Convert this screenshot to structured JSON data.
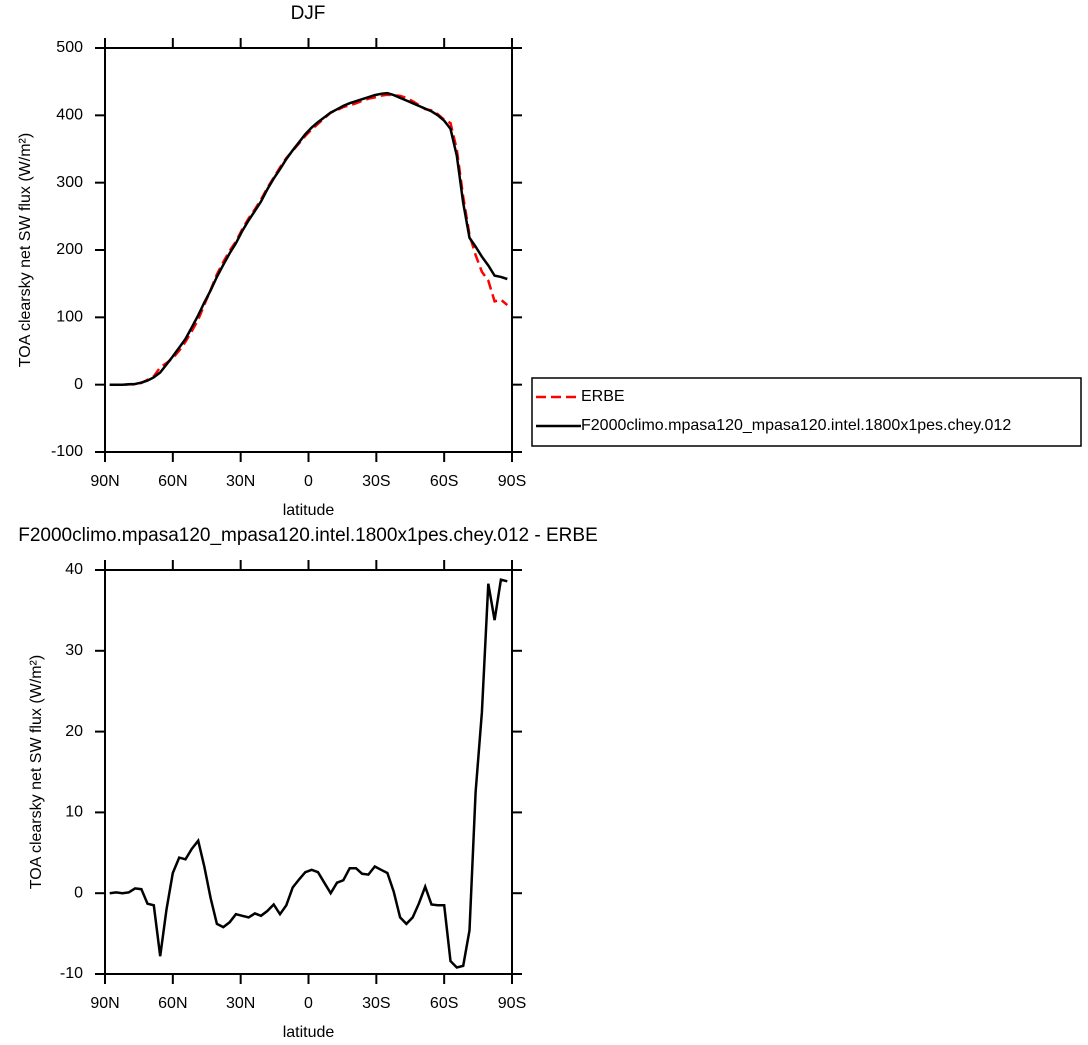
{
  "chart_data": [
    {
      "type": "line",
      "title": "DJF",
      "xlabel": "latitude",
      "ylabel": "TOA clearsky net SW flux (W/m²)",
      "x": [
        87.9,
        85.1,
        82.3,
        79.5,
        76.7,
        73.9,
        71.2,
        68.4,
        65.6,
        62.8,
        60.0,
        57.2,
        54.4,
        51.6,
        48.8,
        46.1,
        43.3,
        40.5,
        37.7,
        34.9,
        32.1,
        29.3,
        26.5,
        23.7,
        21.0,
        18.2,
        15.4,
        12.6,
        9.8,
        7.0,
        4.2,
        1.4,
        -1.4,
        -4.2,
        -7.0,
        -9.8,
        -12.6,
        -15.4,
        -18.2,
        -21.0,
        -23.7,
        -26.5,
        -29.3,
        -32.1,
        -34.9,
        -37.7,
        -40.5,
        -43.3,
        -46.1,
        -48.8,
        -51.6,
        -54.4,
        -57.2,
        -60.0,
        -62.8,
        -65.6,
        -68.4,
        -71.2,
        -73.9,
        -76.7,
        -79.5,
        -82.3,
        -85.1,
        -87.9
      ],
      "series": [
        {
          "name": "ERBE",
          "color": "#ff0000",
          "style": "dashed",
          "values": [
            0,
            -0.1,
            0,
            0.4,
            0.4,
            2.5,
            7.3,
            12.5,
            25.8,
            32,
            39.5,
            50.6,
            63.8,
            79.5,
            96.5,
            118.7,
            140.6,
            163.8,
            182.2,
            198.6,
            212.6,
            230.8,
            247,
            260.5,
            274.8,
            292.2,
            307.4,
            322.6,
            336.5,
            347.3,
            358.3,
            369.4,
            379.1,
            387.4,
            395.7,
            404,
            407.7,
            412.4,
            414.9,
            417.9,
            421.6,
            424.7,
            426.7,
            429.1,
            430.5,
            429.8,
            429,
            425.8,
            421,
            415.3,
            409.2,
            407.4,
            401.5,
            393.5,
            388.4,
            349.2,
            279,
            222.6,
            192.5,
            167.6,
            154.6,
            123.7,
            126.2,
            118.2
          ]
        },
        {
          "name": "F2000climo.mpasa120_mpasa120.intel.1800x1pes.chey.012",
          "color": "#000000",
          "style": "solid",
          "values": [
            0,
            0,
            0,
            0.5,
            1,
            3,
            6,
            11,
            18,
            30,
            42,
            55,
            68,
            85,
            103,
            122,
            140,
            160,
            178,
            195,
            210,
            228,
            244,
            258,
            272,
            290,
            306,
            320,
            335,
            348,
            360,
            372,
            382,
            390,
            397,
            404,
            409,
            414,
            418,
            421,
            424,
            427,
            430,
            432,
            433,
            430,
            426,
            422,
            418,
            414,
            410,
            406,
            400,
            392,
            380,
            340,
            270,
            218,
            205,
            190,
            177,
            162,
            160,
            157
          ]
        }
      ],
      "xlim": [
        90,
        -90
      ],
      "xticks": [
        {
          "value": 90,
          "label": "90N"
        },
        {
          "value": 60,
          "label": "60N"
        },
        {
          "value": 30,
          "label": "30N"
        },
        0,
        {
          "value": -30,
          "label": "30S"
        },
        {
          "value": -60,
          "label": "60S"
        },
        {
          "value": -90,
          "label": "90S"
        }
      ],
      "ylim": [
        -100,
        500
      ],
      "yticks": [
        -100,
        0,
        100,
        200,
        300,
        400,
        500
      ],
      "legend": "right"
    },
    {
      "type": "line",
      "title": "F2000climo.mpasa120_mpasa120.intel.1800x1pes.chey.012 - ERBE",
      "xlabel": "latitude",
      "ylabel": "TOA clearsky net SW flux (W/m²)",
      "x": [
        87.9,
        85.1,
        82.3,
        79.5,
        76.7,
        73.9,
        71.2,
        68.4,
        65.6,
        62.8,
        60.0,
        57.2,
        54.4,
        51.6,
        48.8,
        46.1,
        43.3,
        40.5,
        37.7,
        34.9,
        32.1,
        29.3,
        26.5,
        23.7,
        21.0,
        18.2,
        15.4,
        12.6,
        9.8,
        7.0,
        4.2,
        1.4,
        -1.4,
        -4.2,
        -7.0,
        -9.8,
        -12.6,
        -15.4,
        -18.2,
        -21.0,
        -23.7,
        -26.5,
        -29.3,
        -32.1,
        -34.9,
        -37.7,
        -40.5,
        -43.3,
        -46.1,
        -48.8,
        -51.6,
        -54.4,
        -57.2,
        -60.0,
        -62.8,
        -65.6,
        -68.4,
        -71.2,
        -73.9,
        -76.7,
        -79.5,
        -82.3,
        -85.1,
        -87.9
      ],
      "values": [
        0,
        0.1,
        0,
        0.1,
        0.6,
        0.5,
        -1.3,
        -1.5,
        -7.8,
        -2,
        2.5,
        4.4,
        4.2,
        5.5,
        6.5,
        3.3,
        -0.6,
        -3.8,
        -4.2,
        -3.6,
        -2.6,
        -2.8,
        -3,
        -2.5,
        -2.8,
        -2.2,
        -1.4,
        -2.6,
        -1.5,
        0.7,
        1.7,
        2.6,
        2.9,
        2.6,
        1.3,
        0,
        1.3,
        1.6,
        3.1,
        3.1,
        2.4,
        2.3,
        3.3,
        2.9,
        2.5,
        0.2,
        -3,
        -3.8,
        -3,
        -1.3,
        0.8,
        -1.4,
        -1.5,
        -1.5,
        -8.4,
        -9.2,
        -9,
        -4.6,
        12.5,
        22.4,
        38.3,
        33.8,
        38.8,
        38.6
      ],
      "color": "#000000",
      "xlim": [
        90,
        -90
      ],
      "xticks": [
        {
          "value": 90,
          "label": "90N"
        },
        {
          "value": 60,
          "label": "60N"
        },
        {
          "value": 30,
          "label": "30N"
        },
        0,
        {
          "value": -30,
          "label": "30S"
        },
        {
          "value": -60,
          "label": "60S"
        },
        {
          "value": -90,
          "label": "90S"
        }
      ],
      "ylim": [
        -10,
        40
      ],
      "yticks": [
        -10,
        0,
        10,
        20,
        30,
        40
      ]
    }
  ]
}
